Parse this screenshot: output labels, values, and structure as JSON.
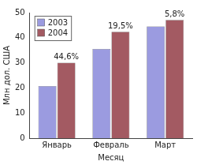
{
  "chart_data": {
    "type": "bar",
    "categories": [
      "Январь",
      "Февраль",
      "Март"
    ],
    "series": [
      {
        "name": "2003",
        "color": "#9b9be0",
        "values": [
          20.75,
          35.5,
          44.5
        ]
      },
      {
        "name": "2004",
        "color": "#a35a62",
        "values": [
          30,
          42.4,
          47.1
        ]
      }
    ],
    "annotations": [
      "44,6%",
      "19,5%",
      "5,8%"
    ],
    "x_label": "Месяц",
    "y_label": "Млн дол. США",
    "ylim": [
      0,
      50
    ],
    "yticks": [
      0,
      10,
      20,
      30,
      40,
      50
    ],
    "grid": false,
    "legend": "upper left"
  }
}
